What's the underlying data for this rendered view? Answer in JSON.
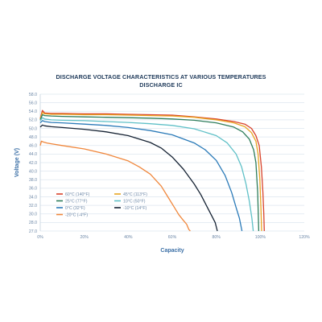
{
  "chart_data": {
    "type": "line",
    "title": "DISCHARGE VOLTAGE CHARACTERISTICS AT VARIOUS TEMPERATURES",
    "subtitle": "DISCHARGE IC",
    "xlabel": "Capacity",
    "ylabel": "Voltage (V)",
    "xlim": [
      0,
      120
    ],
    "ylim": [
      27.0,
      58.0
    ],
    "x_ticks": [
      "0%",
      "20%",
      "40%",
      "60%",
      "80%",
      "100%",
      "120%"
    ],
    "y_ticks": [
      "27.0",
      "28.0",
      "30.0",
      "32.0",
      "34.0",
      "36.0",
      "38.0",
      "40.0",
      "42.0",
      "44.0",
      "46.0",
      "48.0",
      "50.0",
      "52.0",
      "54.0",
      "56.0",
      "58.0"
    ],
    "grid": true,
    "legend_position": "bottom-left",
    "series": [
      {
        "name": "60°C (140°F)",
        "color": "#d9432b",
        "x": [
          0,
          1,
          2,
          5,
          10,
          20,
          30,
          40,
          50,
          60,
          70,
          80,
          88,
          93,
          96,
          98,
          99.5,
          100.5,
          101.2,
          101.6,
          101.8
        ],
        "y": [
          52.3,
          54.2,
          53.6,
          53.5,
          53.5,
          53.4,
          53.4,
          53.3,
          53.2,
          53.1,
          52.7,
          52.2,
          51.6,
          51.0,
          50.0,
          48.3,
          46.0,
          41.0,
          35.0,
          30.0,
          27.0
        ]
      },
      {
        "name": "45°C (113°F)",
        "color": "#e8a522",
        "x": [
          0,
          1,
          2,
          5,
          10,
          20,
          30,
          40,
          50,
          60,
          70,
          80,
          88,
          93,
          96,
          98,
          99,
          99.8,
          100.3,
          100.6
        ],
        "y": [
          52.2,
          53.7,
          53.4,
          53.3,
          53.3,
          53.2,
          53.2,
          53.1,
          53.0,
          52.9,
          52.6,
          52.0,
          51.3,
          50.4,
          49.0,
          47.0,
          44.0,
          38.0,
          31.0,
          27.0
        ]
      },
      {
        "name": "25°C (77°F)",
        "color": "#2e7d5b",
        "x": [
          0,
          1,
          2,
          5,
          10,
          20,
          30,
          40,
          50,
          60,
          70,
          80,
          88,
          92,
          95,
          97,
          98,
          98.8,
          99.3
        ],
        "y": [
          52.0,
          53.2,
          53.0,
          52.9,
          52.8,
          52.7,
          52.6,
          52.5,
          52.4,
          52.2,
          51.9,
          51.3,
          50.3,
          49.2,
          47.5,
          45.0,
          42.0,
          35.0,
          27.0
        ]
      },
      {
        "name": "10°C (50°F)",
        "color": "#5fc0c7",
        "x": [
          0,
          1,
          2,
          5,
          10,
          20,
          30,
          40,
          50,
          60,
          70,
          80,
          85,
          89,
          91.5,
          93.5,
          95,
          96.2,
          96.8
        ],
        "y": [
          51.8,
          52.5,
          52.2,
          52.0,
          51.9,
          51.8,
          51.6,
          51.4,
          51.1,
          50.7,
          49.9,
          48.3,
          46.6,
          44.0,
          41.0,
          37.0,
          33.0,
          29.0,
          27.0
        ]
      },
      {
        "name": "0°C (32°F)",
        "color": "#2a7ab8",
        "x": [
          0,
          1,
          2,
          5,
          10,
          20,
          30,
          40,
          50,
          60,
          70,
          75,
          80,
          84,
          87,
          89,
          90.5,
          91.7
        ],
        "y": [
          51.3,
          51.8,
          51.6,
          51.4,
          51.3,
          51.0,
          50.7,
          50.2,
          49.5,
          48.5,
          46.6,
          45.0,
          42.5,
          39.0,
          35.0,
          31.5,
          29.0,
          27.0
        ]
      },
      {
        "name": "-10°C (14°F)",
        "color": "#152233",
        "x": [
          0,
          1,
          2,
          5,
          10,
          20,
          30,
          40,
          50,
          55,
          60,
          65,
          70,
          73,
          76,
          78,
          79.5,
          80.5
        ],
        "y": [
          50.3,
          50.8,
          50.6,
          50.4,
          50.2,
          49.8,
          49.2,
          48.3,
          46.7,
          45.4,
          43.3,
          40.5,
          37.0,
          34.5,
          31.5,
          29.5,
          28.0,
          27.0
        ]
      },
      {
        "name": "-20°C (-4°F)",
        "color": "#f0873c",
        "x": [
          0,
          0.5,
          1.5,
          3,
          5,
          10,
          20,
          30,
          40,
          45,
          50,
          55,
          58,
          61,
          63,
          65,
          66.5,
          67.5,
          68.2
        ],
        "y": [
          46.0,
          47.0,
          46.8,
          46.6,
          46.4,
          46.0,
          45.2,
          44.0,
          42.4,
          41.0,
          39.3,
          36.5,
          34.0,
          31.5,
          29.8,
          28.5,
          27.8,
          27.2,
          27.0
        ]
      }
    ]
  }
}
